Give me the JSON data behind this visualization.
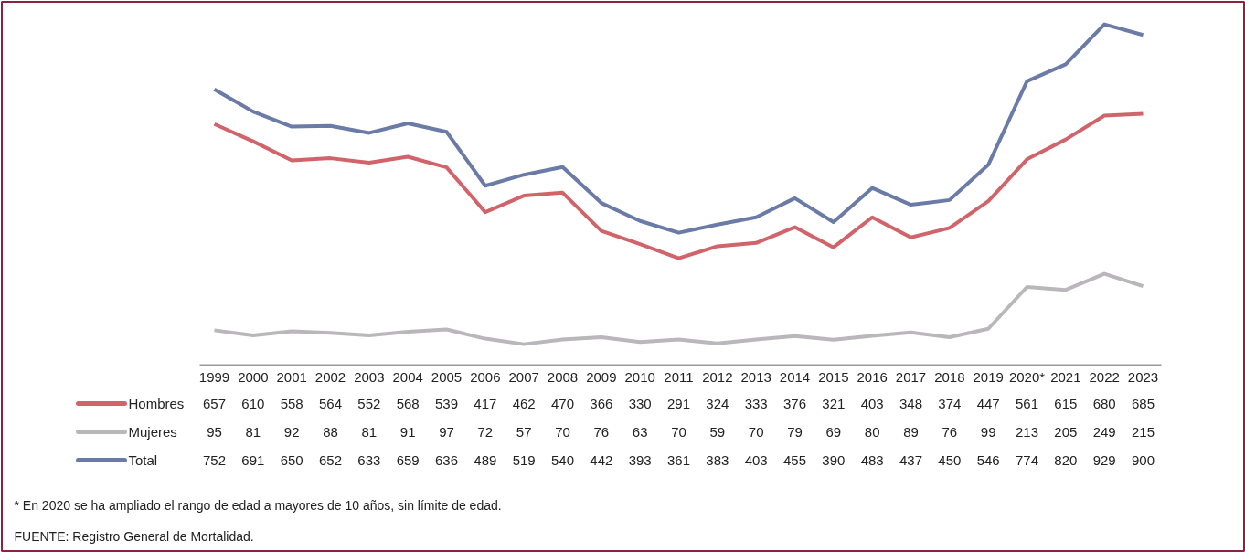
{
  "chart_data": {
    "type": "line",
    "categories": [
      "1999",
      "2000",
      "2001",
      "2002",
      "2003",
      "2004",
      "2005",
      "2006",
      "2007",
      "2008",
      "2009",
      "2010",
      "2011",
      "2012",
      "2013",
      "2014",
      "2015",
      "2016",
      "2017",
      "2018",
      "2019",
      "2020*",
      "2021",
      "2022",
      "2023"
    ],
    "series": [
      {
        "name": "Hombres",
        "color": "#d0646a",
        "values": [
          657,
          610,
          558,
          564,
          552,
          568,
          539,
          417,
          462,
          470,
          366,
          330,
          291,
          324,
          333,
          376,
          321,
          403,
          348,
          374,
          447,
          561,
          615,
          680,
          685
        ]
      },
      {
        "name": "Mujeres",
        "color": "#b9b7b9",
        "values": [
          95,
          81,
          92,
          88,
          81,
          91,
          97,
          72,
          57,
          70,
          76,
          63,
          70,
          59,
          70,
          79,
          69,
          80,
          89,
          76,
          99,
          213,
          205,
          249,
          215
        ]
      },
      {
        "name": "Total",
        "color": "#6b7ba7",
        "values": [
          752,
          691,
          650,
          652,
          633,
          659,
          636,
          489,
          519,
          540,
          442,
          393,
          361,
          383,
          403,
          455,
          390,
          483,
          437,
          450,
          546,
          774,
          820,
          929,
          900
        ]
      }
    ],
    "data_labels": true,
    "legend": "left",
    "grid": false,
    "marker": "none",
    "line_style": "solid",
    "annotations": [
      "* En 2020 se ha ampliado el rango de edad a mayores de 10 años, sin límite de edad.",
      "FUENTE: Registro General de Mortalidad."
    ]
  }
}
